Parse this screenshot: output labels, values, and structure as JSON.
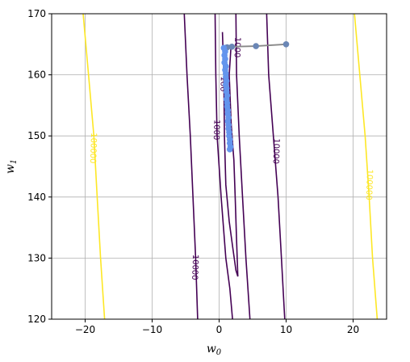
{
  "chart_data": {
    "type": "contour",
    "xlabel": "w",
    "xlabel_sub": "0",
    "ylabel": "w",
    "ylabel_sub": "1",
    "xlim": [
      -25,
      25
    ],
    "ylim": [
      120,
      170
    ],
    "xticks": [
      -20,
      -10,
      0,
      10,
      20
    ],
    "yticks": [
      120,
      130,
      140,
      150,
      160,
      170
    ],
    "grid": true,
    "contour_levels": [
      {
        "level": "100",
        "color": "#440154",
        "lines": [
          [
            [
              0.5,
              167
            ],
            [
              0.7,
              160
            ],
            [
              0.8,
              150
            ],
            [
              1.0,
              142
            ],
            [
              1.5,
              136
            ],
            [
              2.0,
              132
            ],
            [
              2.5,
              128
            ],
            [
              2.8,
              127
            ]
          ],
          [
            [
              1.8,
              165
            ],
            [
              1.5,
              160
            ],
            [
              1.8,
              152
            ],
            [
              2.2,
              146
            ],
            [
              2.4,
              140
            ],
            [
              2.6,
              133
            ],
            [
              2.8,
              127
            ]
          ]
        ],
        "labels": [
          {
            "text": "100",
            "x": 0.6,
            "y": 158.5
          }
        ]
      },
      {
        "level": "1000",
        "color": "#440154",
        "lines": [
          [
            [
              -0.6,
              170
            ],
            [
              -0.5,
              160
            ],
            [
              -0.3,
              150
            ],
            [
              0.3,
              140
            ],
            [
              1.0,
              130
            ],
            [
              1.6,
              125
            ],
            [
              2.0,
              120
            ]
          ],
          [
            [
              2.5,
              170
            ],
            [
              2.6,
              160
            ],
            [
              3.0,
              150
            ],
            [
              3.5,
              140
            ],
            [
              4.0,
              130
            ],
            [
              4.6,
              120
            ]
          ]
        ],
        "labels": [
          {
            "text": "1000",
            "x": -0.4,
            "y": 151
          },
          {
            "text": "1000",
            "x": 2.7,
            "y": 164.5
          }
        ]
      },
      {
        "level": "10000",
        "color": "#440154",
        "lines": [
          [
            [
              -5.2,
              170
            ],
            [
              -4.8,
              160
            ],
            [
              -4.3,
              150
            ],
            [
              -3.9,
              140
            ],
            [
              -3.5,
              130
            ],
            [
              -3.2,
              120
            ]
          ],
          [
            [
              7.1,
              170
            ],
            [
              7.4,
              160
            ],
            [
              8.1,
              150
            ],
            [
              8.8,
              140
            ],
            [
              9.3,
              130
            ],
            [
              9.8,
              120
            ]
          ]
        ],
        "labels": [
          {
            "text": "10000",
            "x": -3.6,
            "y": 128.5
          },
          {
            "text": "10000",
            "x": 8.5,
            "y": 147.5
          }
        ]
      },
      {
        "level": "100000",
        "color": "#fde725",
        "lines": [
          [
            [
              -20.3,
              170
            ],
            [
              -19.5,
              160
            ],
            [
              -18.7,
              150
            ],
            [
              -18.2,
              140
            ],
            [
              -17.7,
              130
            ],
            [
              -17.1,
              120
            ]
          ],
          [
            [
              20.2,
              170
            ],
            [
              21.0,
              160
            ],
            [
              21.8,
              150
            ],
            [
              22.4,
              140
            ],
            [
              22.9,
              130
            ],
            [
              23.6,
              120
            ]
          ]
        ],
        "labels": [
          {
            "text": "100000",
            "x": -18.8,
            "y": 148
          },
          {
            "text": "100000",
            "x": 22.4,
            "y": 142
          }
        ]
      }
    ],
    "path_series": {
      "color": "#6a86b5",
      "points": [
        [
          10,
          165
        ],
        [
          5.5,
          164.7
        ],
        [
          1.9,
          164.6
        ],
        [
          1.2,
          164.5
        ],
        [
          0.9,
          164.4
        ]
      ]
    },
    "cluster_series": {
      "color": "#6495ed",
      "points": [
        [
          0.7,
          164.4
        ],
        [
          0.9,
          163.8
        ],
        [
          0.8,
          163.2
        ],
        [
          0.9,
          162.6
        ],
        [
          0.8,
          162.0
        ],
        [
          1.0,
          161.4
        ],
        [
          0.9,
          160.8
        ],
        [
          1.0,
          160.2
        ],
        [
          1.0,
          159.6
        ],
        [
          1.1,
          159.0
        ],
        [
          1.0,
          158.4
        ],
        [
          1.1,
          157.8
        ],
        [
          1.1,
          157.2
        ],
        [
          1.2,
          156.6
        ],
        [
          1.1,
          156.0
        ],
        [
          1.2,
          155.4
        ],
        [
          1.2,
          154.8
        ],
        [
          1.3,
          154.2
        ],
        [
          1.3,
          153.6
        ],
        [
          1.4,
          153.0
        ],
        [
          1.3,
          152.4
        ],
        [
          1.4,
          151.8
        ],
        [
          1.4,
          151.2
        ],
        [
          1.5,
          150.6
        ],
        [
          1.5,
          150.0
        ],
        [
          1.6,
          149.4
        ],
        [
          1.6,
          148.8
        ],
        [
          1.7,
          148.2
        ],
        [
          1.6,
          147.8
        ]
      ]
    }
  }
}
